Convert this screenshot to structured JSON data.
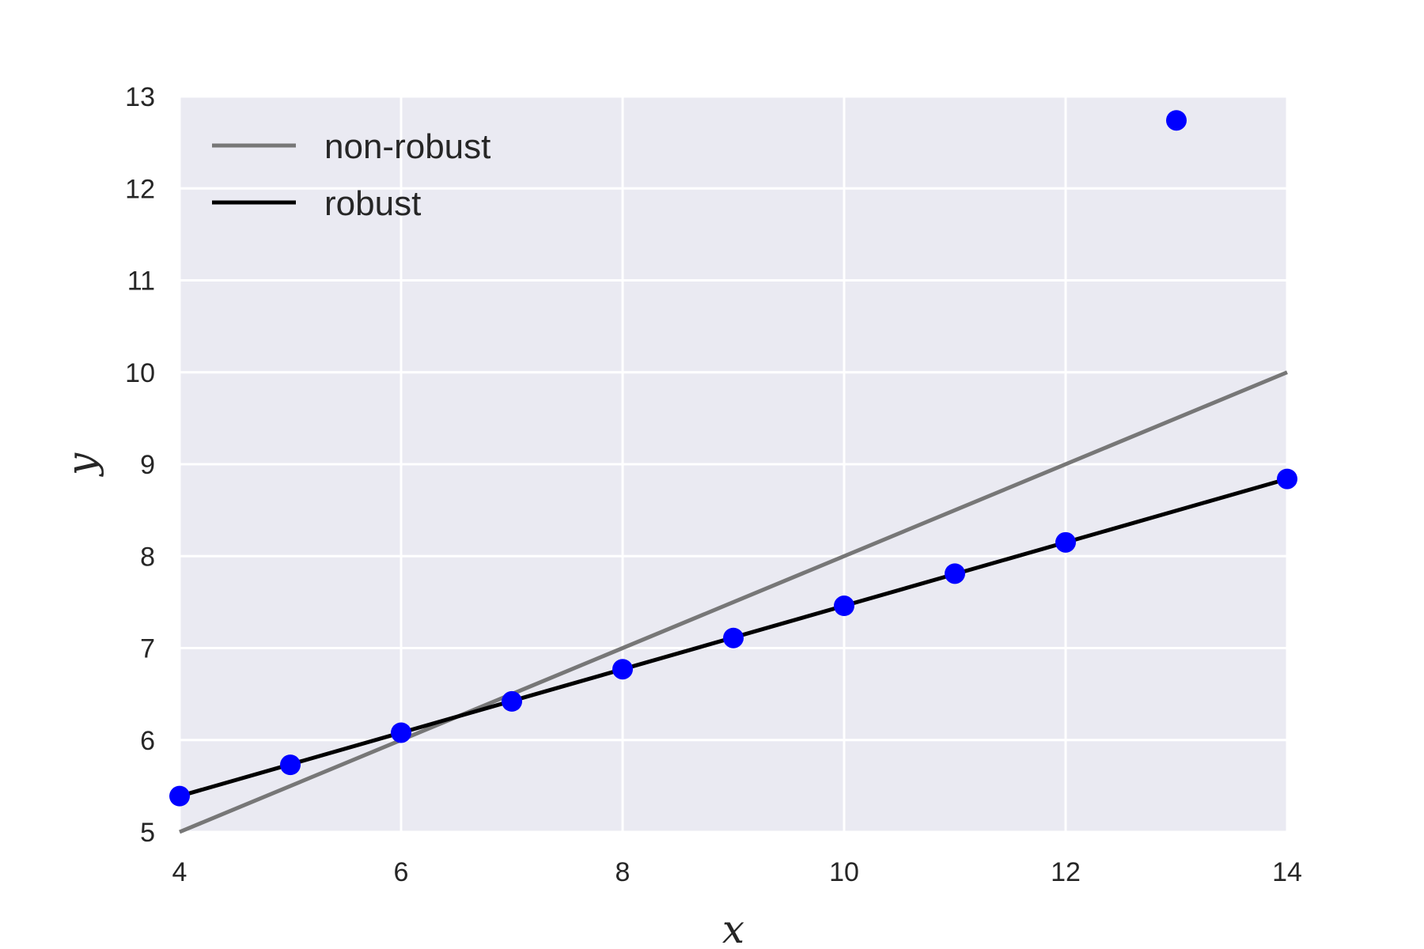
{
  "chart_data": {
    "type": "scatter",
    "xlabel": "x",
    "ylabel": "y",
    "xlim": [
      4,
      14
    ],
    "ylim": [
      5,
      13
    ],
    "xticks": [
      4,
      6,
      8,
      10,
      12,
      14
    ],
    "yticks": [
      5,
      6,
      7,
      8,
      9,
      10,
      11,
      12,
      13
    ],
    "grid": true,
    "legend_placement": "top-left",
    "points": {
      "color": "#0000ff",
      "x": [
        4,
        5,
        6,
        7,
        8,
        9,
        10,
        11,
        12,
        13,
        14
      ],
      "y": [
        5.39,
        5.73,
        6.08,
        6.42,
        6.77,
        7.11,
        7.46,
        7.81,
        8.15,
        12.74,
        8.84
      ]
    },
    "series": [
      {
        "name": "non-robust",
        "color": "#777777",
        "x": [
          4,
          14
        ],
        "y": [
          5.0,
          10.0
        ]
      },
      {
        "name": "robust",
        "color": "#000000",
        "x": [
          4,
          14
        ],
        "y": [
          5.39,
          8.84
        ]
      }
    ],
    "colors": {
      "plot_background": "#eaeaf2",
      "grid": "#ffffff",
      "text": "#262626"
    }
  }
}
